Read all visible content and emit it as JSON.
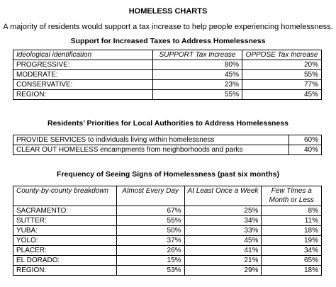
{
  "title": "HOMELESS CHARTS",
  "subtitle": "A majority of residents would support a tax increase to help people experiencing homelessness.",
  "taxes": {
    "heading": "Support for Increased Taxes to Address Homelessness",
    "columns": [
      "Ideological identification",
      "SUPPORT Tax Increase",
      "OPPOSE Tax Increase"
    ],
    "rows": [
      {
        "label": "PROGRESSIVE:",
        "support": "80%",
        "oppose": "20%"
      },
      {
        "label": "MODERATE:",
        "support": "45%",
        "oppose": "55%"
      },
      {
        "label": "CONSERVATIVE:",
        "support": "23%",
        "oppose": "77%"
      },
      {
        "label": "REGION:",
        "support": "55%",
        "oppose": "45%"
      }
    ]
  },
  "priorities": {
    "heading": "Residents’ Priorities for Local Authorities to Address Homelessness",
    "rows": [
      {
        "label": "PROVIDE SERVICES to individuals living within homelessness",
        "value": "60%"
      },
      {
        "label": "CLEAR OUT HOMELESS encampments from neighborhoods and parks",
        "value": "40%"
      }
    ]
  },
  "frequency": {
    "heading": "Frequency of Seeing Signs of Homelessness (past six months)",
    "columns": [
      "County-by-county breakdown",
      "Almost Every Day",
      "At Least Once a Week",
      "Few Times a Month or Less"
    ],
    "rows": [
      {
        "label": "SACRAMENTO:",
        "daily": "67%",
        "weekly": "25%",
        "monthly": "8%"
      },
      {
        "label": "SUTTER:",
        "daily": "55%",
        "weekly": "34%",
        "monthly": "11%"
      },
      {
        "label": "YUBA:",
        "daily": "50%",
        "weekly": "33%",
        "monthly": "18%"
      },
      {
        "label": "YOLO:",
        "daily": "37%",
        "weekly": "45%",
        "monthly": "19%"
      },
      {
        "label": "PLACER:",
        "daily": "26%",
        "weekly": "41%",
        "monthly": "34%"
      },
      {
        "label": "EL DORADO:",
        "daily": "15%",
        "weekly": "21%",
        "monthly": "65%"
      },
      {
        "label": "REGION:",
        "daily": "53%",
        "weekly": "29%",
        "monthly": "18%"
      }
    ]
  }
}
